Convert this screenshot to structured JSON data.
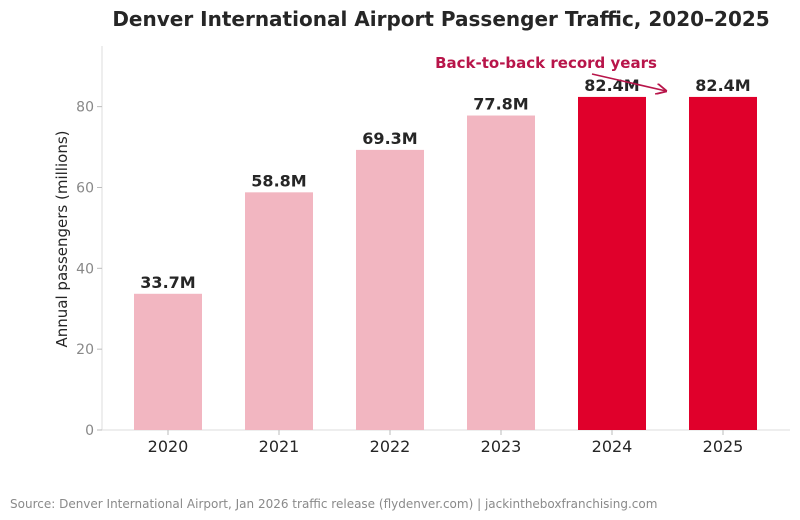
{
  "chart_data": {
    "type": "bar",
    "title": "Denver International Airport Passenger Traffic, 2020–2025",
    "xlabel": "",
    "ylabel": "Annual passengers (millions)",
    "ylim": [
      0,
      95
    ],
    "yticks": [
      "0",
      "20",
      "40",
      "60",
      "80"
    ],
    "ytick_values": [
      0,
      20,
      40,
      60,
      80
    ],
    "categories": [
      "2020",
      "2021",
      "2022",
      "2023",
      "2024",
      "2025"
    ],
    "values": [
      33.7,
      58.8,
      69.3,
      77.8,
      82.4,
      82.4
    ],
    "data_labels": [
      "33.7M",
      "58.8M",
      "69.3M",
      "77.8M",
      "82.4M",
      "82.4M"
    ],
    "highlight": [
      false,
      false,
      false,
      false,
      true,
      true
    ],
    "colors": {
      "normal": "#f2b6c1",
      "highlight": "#e0002b",
      "annotation": "#b8154a"
    },
    "annotation": {
      "text": "Back-to-back record years",
      "points_to": "2025"
    },
    "grid": false,
    "legend": "none"
  },
  "footer": {
    "source": "Source: Denver International Airport, Jan 2026 traffic release (flydenver.com)  |  jackintheboxfranchising.com"
  }
}
